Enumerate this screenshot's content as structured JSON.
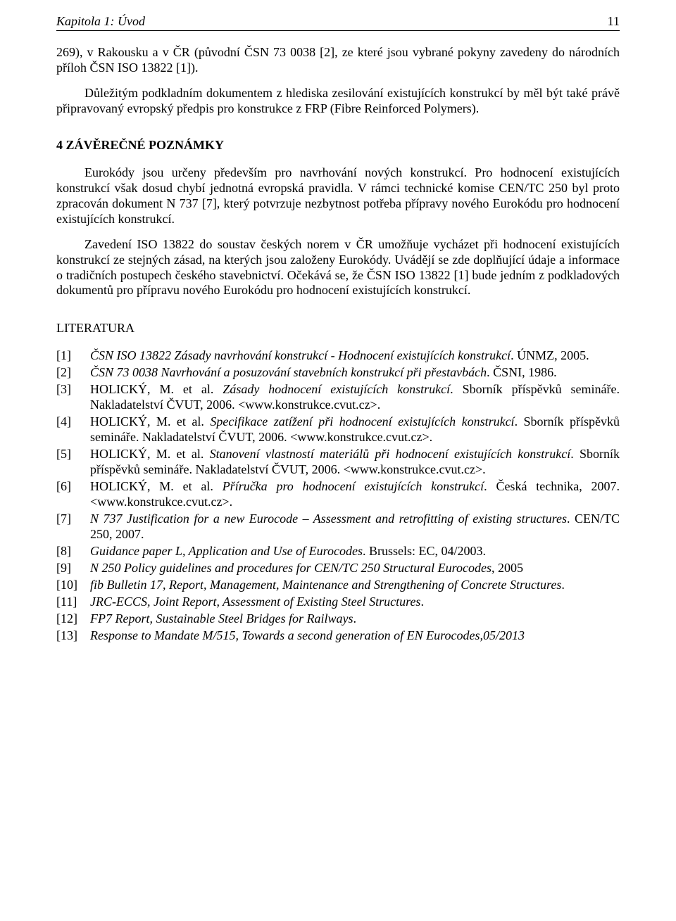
{
  "header": {
    "title": "Kapitola 1: Úvod",
    "page_number": "11"
  },
  "paragraphs": {
    "p1": "269), v Rakousku a v ČR (původní ČSN 73 0038 [2], ze které jsou vybrané pokyny zavedeny do národních příloh ČSN ISO 13822 [1]).",
    "p2": "Důležitým podkladním dokumentem z hlediska zesilování existujících konstrukcí by měl být také právě připravovaný evropský předpis pro konstrukce z FRP (Fibre Reinforced Polymers).",
    "section4": "4   ZÁVĚREČNÉ POZNÁMKY",
    "p3": "Eurokódy jsou určeny především pro navrhování nových konstrukcí. Pro hodnocení existujících konstrukcí však dosud chybí jednotná evropská pravidla. V rámci technické komise CEN/TC 250 byl proto zpracován dokument N 737 [7], který potvrzuje nezbytnost potřeba přípravy nového Eurokódu pro hodnocení existujících konstrukcí.",
    "p4": "Zavedení ISO 13822 do soustav českých norem v ČR umožňuje vycházet při hodnocení existujících konstrukcí ze stejných zásad, na kterých jsou založeny Eurokódy. Uvádějí se zde doplňující údaje a informace o tradičních postupech českého stavebnictví. Očekává se, že ČSN ISO 13822 [1] bude jedním z podkladových dokumentů pro přípravu nového Eurokódu pro hodnocení existujících konstrukcí.",
    "lit": "LITERATURA"
  },
  "references": [
    {
      "num": "[1]",
      "pre": "",
      "italic": "ČSN ISO 13822 Zásady navrhování konstrukcí - Hodnocení existujících konstrukcí",
      "post": ". ÚNMZ, 2005."
    },
    {
      "num": "[2]",
      "pre": "",
      "italic": "ČSN 73 0038 Navrhování a posuzování stavebních konstrukcí při přestavbách",
      "post": ". ČSNI, 1986."
    },
    {
      "num": "[3]",
      "pre": "HOLICKÝ, M. et al. ",
      "italic": "Zásady hodnocení existujících konstrukcí",
      "post": ". Sborník příspěvků semináře. Nakladatelství ČVUT, 2006. <www.konstrukce.cvut.cz>."
    },
    {
      "num": "[4]",
      "pre": "HOLICKÝ, M. et al. ",
      "italic": "Specifikace zatížení při hodnocení existujících konstrukcí",
      "post": ". Sborník příspěvků semináře. Nakladatelství ČVUT, 2006. <www.konstrukce.cvut.cz>."
    },
    {
      "num": "[5]",
      "pre": "HOLICKÝ, M. et al. ",
      "italic": "Stanovení vlastností materiálů při hodnocení existujících konstrukcí",
      "post": ". Sborník příspěvků semináře. Nakladatelství ČVUT, 2006. <www.konstrukce.cvut.cz>."
    },
    {
      "num": "[6]",
      "pre": "HOLICKÝ, M. et al. ",
      "italic": "Příručka pro hodnocení existujících konstrukcí",
      "post": ". Česká technika, 2007. <www.konstrukce.cvut.cz>."
    },
    {
      "num": "[7]",
      "pre": "",
      "italic": "N 737 Justification for a new Eurocode – Assessment and retrofitting of existing structures",
      "post": ". CEN/TC 250, 2007."
    },
    {
      "num": "[8]",
      "pre": "",
      "italic": "Guidance paper L, Application and Use of Eurocodes",
      "post": ". Brussels: EC, 04/2003."
    },
    {
      "num": "[9]",
      "pre": "",
      "italic": "N 250 Policy guidelines and procedures for CEN/TC 250 Structural Eurocodes",
      "post": ", 2005"
    },
    {
      "num": "[10]",
      "pre": "",
      "italic": "fib Bulletin 17, Report, Management, Maintenance and Strengthening of Concrete Structures",
      "post": "."
    },
    {
      "num": "[11]",
      "pre": "",
      "italic": "JRC-ECCS, Joint Report, Assessment of Existing Steel Structures",
      "post": "."
    },
    {
      "num": "[12]",
      "pre": "",
      "italic": "FP7 Report, Sustainable Steel Bridges for Railways",
      "post": "."
    },
    {
      "num": "[13]",
      "pre": "",
      "italic": "Response to Mandate M/515, Towards a second generation of EN Eurocodes,05/2013",
      "post": ""
    }
  ]
}
